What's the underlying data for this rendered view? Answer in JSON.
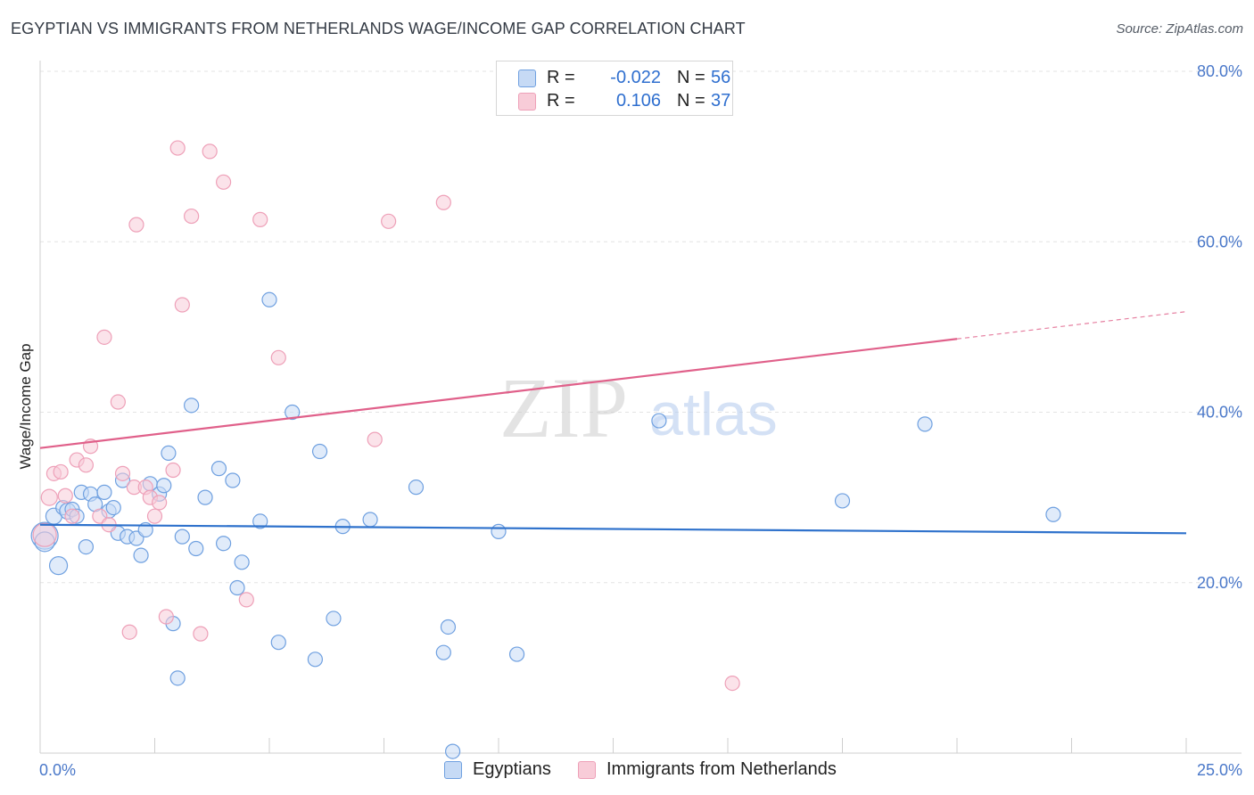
{
  "title": "EGYPTIAN VS IMMIGRANTS FROM NETHERLANDS WAGE/INCOME GAP CORRELATION CHART",
  "source": "Source: ZipAtlas.com",
  "watermark": {
    "zip": "ZIP",
    "atlas": "atlas"
  },
  "legend": {
    "r_label": "R =",
    "n_label": "N =",
    "series": [
      {
        "r": "-0.022",
        "n": "56"
      },
      {
        "r": "0.106",
        "n": "37"
      }
    ]
  },
  "chart_data": {
    "type": "scatter",
    "title": "EGYPTIAN VS IMMIGRANTS FROM NETHERLANDS WAGE/INCOME GAP CORRELATION CHART",
    "xlabel": "",
    "ylabel": "Wage/Income Gap",
    "xlim": [
      0,
      25
    ],
    "ylim": [
      0,
      80
    ],
    "x_tick_labels": [
      "0.0%",
      "25.0%"
    ],
    "y_tick_values": [
      20,
      40,
      60,
      80
    ],
    "y_tick_labels": [
      "20.0%",
      "40.0%",
      "60.0%",
      "80.0%"
    ],
    "grid": true,
    "series": [
      {
        "name": "Egyptians",
        "color": "#6fa0e0",
        "fill": "#c6daf5",
        "line_color": "#2f72cc",
        "trend": {
          "x0": 0,
          "y0": 26.8,
          "x1": 25,
          "y1": 25.8,
          "dashed_from": null
        },
        "points": [
          [
            0.1,
            25.5,
            28
          ],
          [
            0.1,
            24.8,
            20
          ],
          [
            0.3,
            27.8,
            16
          ],
          [
            0.4,
            22.0,
            18
          ],
          [
            0.5,
            28.8,
            14
          ],
          [
            0.6,
            28.4,
            16
          ],
          [
            0.7,
            28.6,
            14
          ],
          [
            0.8,
            27.8,
            14
          ],
          [
            0.9,
            30.6,
            14
          ],
          [
            1.0,
            24.2,
            14
          ],
          [
            1.1,
            30.4,
            14
          ],
          [
            1.2,
            29.2,
            14
          ],
          [
            1.4,
            30.6,
            14
          ],
          [
            1.5,
            28.4,
            14
          ],
          [
            1.6,
            28.8,
            14
          ],
          [
            1.7,
            25.8,
            14
          ],
          [
            1.8,
            32.0,
            14
          ],
          [
            1.9,
            25.4,
            14
          ],
          [
            2.1,
            25.2,
            14
          ],
          [
            2.2,
            23.2,
            14
          ],
          [
            2.3,
            26.2,
            14
          ],
          [
            2.4,
            31.6,
            14
          ],
          [
            2.6,
            30.4,
            14
          ],
          [
            2.7,
            31.4,
            14
          ],
          [
            2.8,
            35.2,
            14
          ],
          [
            2.9,
            15.2,
            14
          ],
          [
            3.0,
            8.8,
            14
          ],
          [
            3.1,
            25.4,
            14
          ],
          [
            3.3,
            40.8,
            14
          ],
          [
            3.4,
            24.0,
            14
          ],
          [
            3.6,
            30.0,
            14
          ],
          [
            3.9,
            33.4,
            14
          ],
          [
            4.0,
            24.6,
            14
          ],
          [
            4.2,
            32.0,
            14
          ],
          [
            4.3,
            19.4,
            14
          ],
          [
            4.4,
            22.4,
            14
          ],
          [
            4.8,
            27.2,
            14
          ],
          [
            5.0,
            53.2,
            14
          ],
          [
            5.2,
            13.0,
            14
          ],
          [
            5.5,
            40.0,
            14
          ],
          [
            6.0,
            11.0,
            14
          ],
          [
            6.1,
            35.4,
            14
          ],
          [
            6.4,
            15.8,
            14
          ],
          [
            6.6,
            26.6,
            14
          ],
          [
            7.2,
            27.4,
            14
          ],
          [
            8.2,
            31.2,
            14
          ],
          [
            8.8,
            11.8,
            14
          ],
          [
            8.9,
            14.8,
            14
          ],
          [
            9.0,
            0.2,
            14
          ],
          [
            10.0,
            26.0,
            14
          ],
          [
            10.4,
            11.6,
            14
          ],
          [
            13.5,
            39.0,
            14
          ],
          [
            17.5,
            29.6,
            14
          ],
          [
            19.3,
            38.6,
            14
          ],
          [
            22.1,
            28.0,
            14
          ]
        ]
      },
      {
        "name": "Immigrants from Netherlands",
        "color": "#eea0b8",
        "fill": "#f8ccd8",
        "line_color": "#e0608a",
        "trend": {
          "x0": 0,
          "y0": 35.8,
          "x1": 25,
          "y1": 51.8,
          "dashed_from": 20.0
        },
        "points": [
          [
            0.1,
            25.6,
            24
          ],
          [
            0.2,
            30.0,
            16
          ],
          [
            0.3,
            32.8,
            14
          ],
          [
            0.45,
            33.0,
            14
          ],
          [
            0.55,
            30.2,
            14
          ],
          [
            0.7,
            27.8,
            14
          ],
          [
            0.8,
            34.4,
            14
          ],
          [
            1.0,
            33.8,
            14
          ],
          [
            1.1,
            36.0,
            14
          ],
          [
            1.3,
            27.8,
            14
          ],
          [
            1.4,
            48.8,
            14
          ],
          [
            1.5,
            26.8,
            14
          ],
          [
            1.7,
            41.2,
            14
          ],
          [
            1.8,
            32.8,
            14
          ],
          [
            1.95,
            14.2,
            14
          ],
          [
            2.05,
            31.2,
            14
          ],
          [
            2.1,
            62.0,
            14
          ],
          [
            2.3,
            31.2,
            14
          ],
          [
            2.4,
            30.0,
            14
          ],
          [
            2.5,
            27.8,
            14
          ],
          [
            2.6,
            29.4,
            14
          ],
          [
            2.75,
            16.0,
            14
          ],
          [
            2.9,
            33.2,
            14
          ],
          [
            3.0,
            71.0,
            14
          ],
          [
            3.1,
            52.6,
            14
          ],
          [
            3.3,
            63.0,
            14
          ],
          [
            3.5,
            14.0,
            14
          ],
          [
            3.7,
            70.6,
            14
          ],
          [
            4.0,
            67.0,
            14
          ],
          [
            4.5,
            18.0,
            14
          ],
          [
            4.8,
            62.6,
            14
          ],
          [
            5.2,
            46.4,
            14
          ],
          [
            7.3,
            36.8,
            14
          ],
          [
            7.6,
            62.4,
            14
          ],
          [
            8.8,
            64.6,
            14
          ],
          [
            15.1,
            8.2,
            14
          ]
        ]
      }
    ]
  }
}
